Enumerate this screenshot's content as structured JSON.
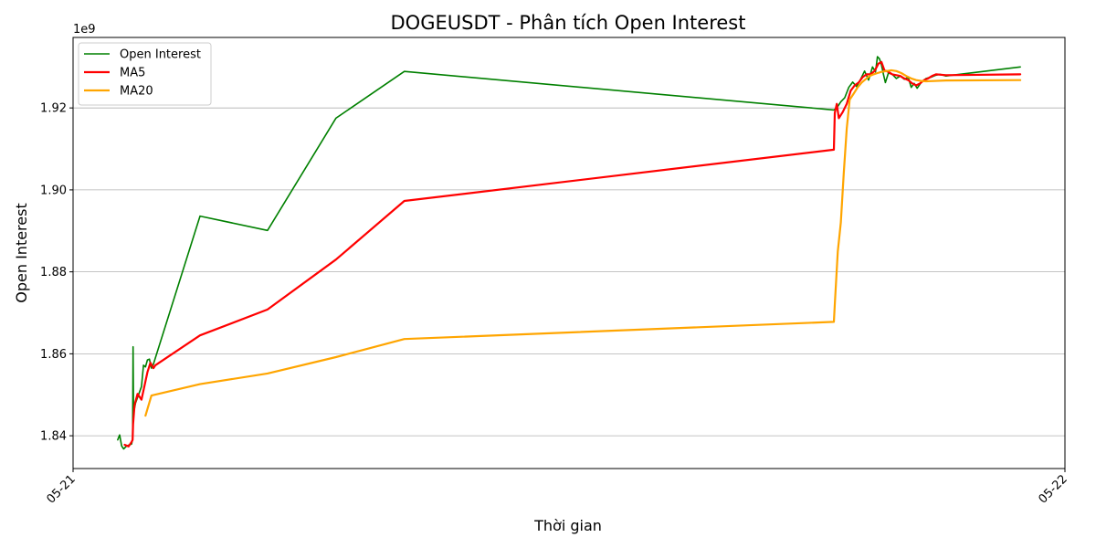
{
  "chart_data": {
    "type": "line",
    "title": "DOGEUSDT - Phân tích Open Interest",
    "xlabel": "Thời gian",
    "ylabel": "Open Interest",
    "y_offset_label": "1e9",
    "y_scale_factor": 1000000000,
    "xlim": [
      "05-21",
      "05-22"
    ],
    "x_ticks": [
      "05-21",
      "05-22"
    ],
    "ylim": [
      1.832,
      1.9372
    ],
    "y_ticks": [
      1.84,
      1.86,
      1.88,
      1.9,
      1.92
    ],
    "y_tick_labels": [
      "1.84",
      "1.86",
      "1.88",
      "1.90",
      "1.92"
    ],
    "grid": "y-major",
    "legend_position": "top-left",
    "series": [
      {
        "name": "Open Interest",
        "color": "#008000",
        "points": [
          [
            0.045,
            1.839
          ],
          [
            0.047,
            1.8402
          ],
          [
            0.049,
            1.8375
          ],
          [
            0.051,
            1.8368
          ],
          [
            0.054,
            1.8375
          ],
          [
            0.057,
            1.8378
          ],
          [
            0.059,
            1.838
          ],
          [
            0.06,
            1.8392
          ],
          [
            0.0605,
            1.8617
          ],
          [
            0.061,
            1.8455
          ],
          [
            0.063,
            1.848
          ],
          [
            0.066,
            1.85
          ],
          [
            0.069,
            1.852
          ],
          [
            0.071,
            1.8572
          ],
          [
            0.073,
            1.8568
          ],
          [
            0.075,
            1.8585
          ],
          [
            0.077,
            1.8587
          ],
          [
            0.079,
            1.8565
          ],
          [
            0.081,
            1.8575
          ],
          [
            0.128,
            1.8936
          ],
          [
            0.196,
            1.8901
          ],
          [
            0.265,
            1.9175
          ],
          [
            0.334,
            1.9289
          ],
          [
            0.767,
            1.9195
          ],
          [
            0.77,
            1.92
          ],
          [
            0.774,
            1.9215
          ],
          [
            0.778,
            1.9225
          ],
          [
            0.782,
            1.925
          ],
          [
            0.786,
            1.9263
          ],
          [
            0.79,
            1.9252
          ],
          [
            0.794,
            1.927
          ],
          [
            0.798,
            1.929
          ],
          [
            0.802,
            1.9268
          ],
          [
            0.806,
            1.93
          ],
          [
            0.809,
            1.9288
          ],
          [
            0.811,
            1.9325
          ],
          [
            0.813,
            1.932
          ],
          [
            0.815,
            1.9305
          ],
          [
            0.817,
            1.9282
          ],
          [
            0.819,
            1.9262
          ],
          [
            0.822,
            1.9285
          ],
          [
            0.826,
            1.9282
          ],
          [
            0.83,
            1.9272
          ],
          [
            0.834,
            1.9278
          ],
          [
            0.838,
            1.927
          ],
          [
            0.842,
            1.9275
          ],
          [
            0.845,
            1.925
          ],
          [
            0.848,
            1.926
          ],
          [
            0.851,
            1.9248
          ],
          [
            0.855,
            1.9262
          ],
          [
            0.86,
            1.9272
          ],
          [
            0.865,
            1.9275
          ],
          [
            0.87,
            1.928
          ],
          [
            0.874,
            1.9282
          ],
          [
            0.88,
            1.9278
          ],
          [
            0.955,
            1.93
          ]
        ]
      },
      {
        "name": "MA5",
        "color": "#ff0000",
        "points": [
          [
            0.052,
            1.8378
          ],
          [
            0.056,
            1.8374
          ],
          [
            0.059,
            1.8385
          ],
          [
            0.06,
            1.839
          ],
          [
            0.0605,
            1.8428
          ],
          [
            0.062,
            1.8475
          ],
          [
            0.065,
            1.8502
          ],
          [
            0.069,
            1.8488
          ],
          [
            0.072,
            1.8522
          ],
          [
            0.075,
            1.8555
          ],
          [
            0.078,
            1.8578
          ],
          [
            0.081,
            1.8565
          ],
          [
            0.083,
            1.8572
          ],
          [
            0.128,
            1.8645
          ],
          [
            0.196,
            1.8708
          ],
          [
            0.265,
            1.883
          ],
          [
            0.334,
            1.8973
          ],
          [
            0.767,
            1.9098
          ],
          [
            0.768,
            1.9188
          ],
          [
            0.77,
            1.921
          ],
          [
            0.772,
            1.9175
          ],
          [
            0.776,
            1.919
          ],
          [
            0.78,
            1.921
          ],
          [
            0.784,
            1.9242
          ],
          [
            0.788,
            1.9255
          ],
          [
            0.792,
            1.9262
          ],
          [
            0.796,
            1.9275
          ],
          [
            0.8,
            1.9282
          ],
          [
            0.804,
            1.9282
          ],
          [
            0.808,
            1.929
          ],
          [
            0.812,
            1.9308
          ],
          [
            0.815,
            1.9312
          ],
          [
            0.818,
            1.9292
          ],
          [
            0.822,
            1.9288
          ],
          [
            0.826,
            1.9282
          ],
          [
            0.83,
            1.928
          ],
          [
            0.834,
            1.9278
          ],
          [
            0.838,
            1.9272
          ],
          [
            0.842,
            1.9268
          ],
          [
            0.846,
            1.926
          ],
          [
            0.85,
            1.9255
          ],
          [
            0.854,
            1.926
          ],
          [
            0.858,
            1.9268
          ],
          [
            0.862,
            1.9272
          ],
          [
            0.866,
            1.9278
          ],
          [
            0.87,
            1.9282
          ],
          [
            0.88,
            1.928
          ],
          [
            0.955,
            1.9282
          ]
        ]
      },
      {
        "name": "MA20",
        "color": "#ffa500",
        "points": [
          [
            0.073,
            1.8449
          ],
          [
            0.079,
            1.8498
          ],
          [
            0.128,
            1.8526
          ],
          [
            0.196,
            1.8552
          ],
          [
            0.265,
            1.8592
          ],
          [
            0.334,
            1.8636
          ],
          [
            0.767,
            1.8678
          ],
          [
            0.768,
            1.872
          ],
          [
            0.771,
            1.885
          ],
          [
            0.774,
            1.892
          ],
          [
            0.777,
            1.904
          ],
          [
            0.78,
            1.915
          ],
          [
            0.783,
            1.922
          ],
          [
            0.787,
            1.9235
          ],
          [
            0.791,
            1.925
          ],
          [
            0.795,
            1.9262
          ],
          [
            0.799,
            1.927
          ],
          [
            0.803,
            1.9278
          ],
          [
            0.807,
            1.9282
          ],
          [
            0.811,
            1.9285
          ],
          [
            0.815,
            1.9288
          ],
          [
            0.82,
            1.929
          ],
          [
            0.825,
            1.9292
          ],
          [
            0.83,
            1.929
          ],
          [
            0.835,
            1.9285
          ],
          [
            0.84,
            1.9278
          ],
          [
            0.845,
            1.9272
          ],
          [
            0.85,
            1.9268
          ],
          [
            0.855,
            1.9266
          ],
          [
            0.86,
            1.9265
          ],
          [
            0.88,
            1.9267
          ],
          [
            0.955,
            1.9268
          ]
        ]
      }
    ]
  }
}
